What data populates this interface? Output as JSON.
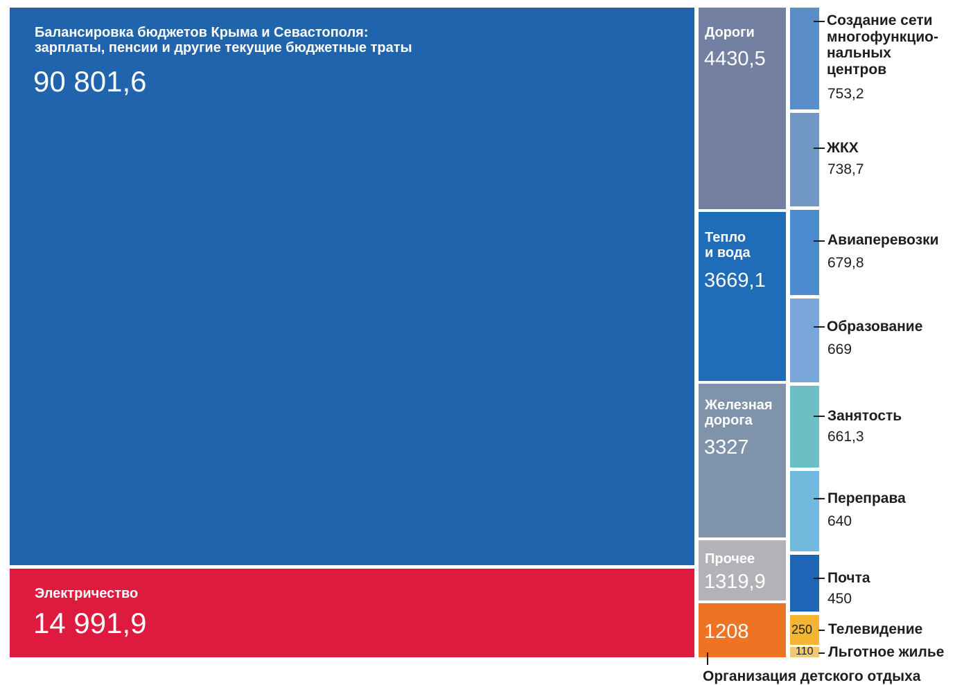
{
  "chart_data": {
    "type": "treemap",
    "items": [
      {
        "name": "Балансировка бюджетов Крыма и Севастополя:\nзарплаты, пенсии и другие текущие бюджетные траты",
        "value": 90801.6,
        "display": "90 801,6",
        "color": "#1f64ad"
      },
      {
        "name": "Электричество",
        "value": 14991.9,
        "display": "14 991,9",
        "color": "#de1a3e"
      },
      {
        "name": "Дороги",
        "value": 4430.5,
        "display": "4430,5",
        "color": "#7480a2"
      },
      {
        "name": "Тепло\nи вода",
        "value": 3669.1,
        "display": "3669,1",
        "color": "#1f6cb8"
      },
      {
        "name": "Железная\nдорога",
        "value": 3327,
        "display": "3327",
        "color": "#7f93ab"
      },
      {
        "name": "Прочее",
        "value": 1319.9,
        "display": "1319,9",
        "color": "#b1b3b7"
      },
      {
        "name": "Организация детского отдыха",
        "value": 1208,
        "display": "1208",
        "color": "#ee7322"
      },
      {
        "name": "Создание сети\nмногофункцио-\nнальных\nцентров",
        "value": 753.2,
        "display": "753,2",
        "color": "#5b8dc9"
      },
      {
        "name": "ЖКХ",
        "value": 738.7,
        "display": "738,7",
        "color": "#7198c5"
      },
      {
        "name": "Авиаперевозки",
        "value": 679.8,
        "display": "679,8",
        "color": "#4e8ad0"
      },
      {
        "name": "Образование",
        "value": 669,
        "display": "669",
        "color": "#7aa7d9"
      },
      {
        "name": "Занятость",
        "value": 661.3,
        "display": "661,3",
        "color": "#6cc0c5"
      },
      {
        "name": "Переправа",
        "value": 640,
        "display": "640",
        "color": "#71b9dd"
      },
      {
        "name": "Почта",
        "value": 450,
        "display": "450",
        "color": "#1f64b5"
      },
      {
        "name": "Телевидение",
        "value": 250,
        "display": "250",
        "color": "#f3b532"
      },
      {
        "name": "Льготное жилье",
        "value": 110,
        "display": "110",
        "color": "#f0c874"
      }
    ]
  }
}
